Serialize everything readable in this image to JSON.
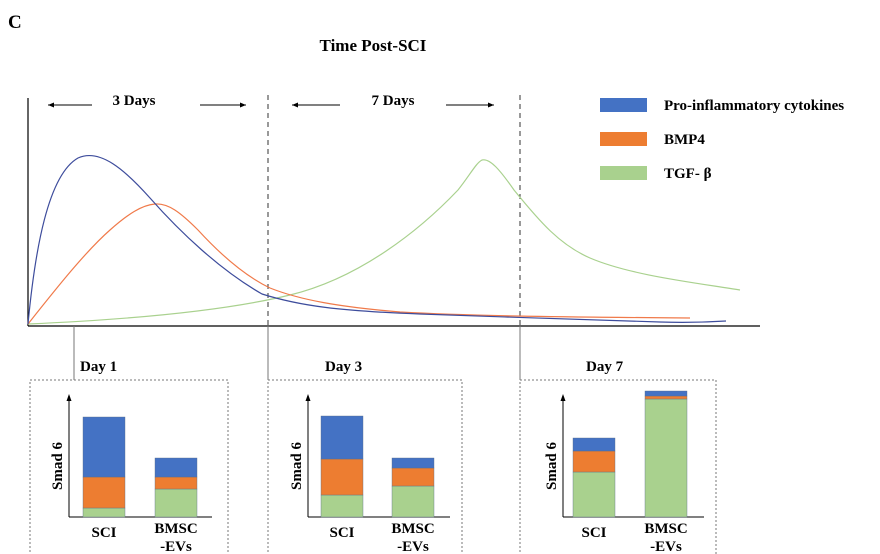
{
  "figure": {
    "panel_letter": "C",
    "title": "Time Post-SCI",
    "periods": [
      {
        "label": "3 Days"
      },
      {
        "label": "7 Days"
      }
    ],
    "legend": [
      {
        "label": "Pro-inflammatory cytokines",
        "color": "#4472C4"
      },
      {
        "label": "BMP4",
        "color": "#ED7D31"
      },
      {
        "label": "TGF- β",
        "color": "#A9D18E"
      }
    ],
    "curve_colors": {
      "pro_inflammatory": "#3D4C9C",
      "bmp4": "#F07A4A",
      "tgf_beta": "#A9D18E"
    }
  },
  "panels": [
    {
      "title": "Day 1",
      "ylabel": "Smad 6",
      "bars": [
        {
          "label": "SCI",
          "segments": [
            {
              "name": "TGF-β",
              "value": 0.09,
              "color": "#A9D18E"
            },
            {
              "name": "BMP4",
              "value": 0.31,
              "color": "#ED7D31"
            },
            {
              "name": "Pro-inflammatory cytokines",
              "value": 0.6,
              "color": "#4472C4"
            }
          ]
        },
        {
          "label_lines": [
            "BMSC",
            "-EVs"
          ],
          "segments": [
            {
              "name": "TGF-β",
              "value": 0.28,
              "color": "#A9D18E"
            },
            {
              "name": "BMP4",
              "value": 0.12,
              "color": "#ED7D31"
            },
            {
              "name": "Pro-inflammatory cytokines",
              "value": 0.19,
              "color": "#4472C4"
            }
          ]
        }
      ]
    },
    {
      "title": "Day 3",
      "ylabel": "Smad 6",
      "bars": [
        {
          "label": "SCI",
          "segments": [
            {
              "name": "TGF-β",
              "value": 0.22,
              "color": "#A9D18E"
            },
            {
              "name": "BMP4",
              "value": 0.36,
              "color": "#ED7D31"
            },
            {
              "name": "Pro-inflammatory cytokines",
              "value": 0.43,
              "color": "#4472C4"
            }
          ]
        },
        {
          "label_lines": [
            "BMSC",
            "-EVs"
          ],
          "segments": [
            {
              "name": "TGF-β",
              "value": 0.31,
              "color": "#A9D18E"
            },
            {
              "name": "BMP4",
              "value": 0.18,
              "color": "#ED7D31"
            },
            {
              "name": "Pro-inflammatory cytokines",
              "value": 0.1,
              "color": "#4472C4"
            }
          ]
        }
      ]
    },
    {
      "title": "Day 7",
      "ylabel": "Smad 6",
      "bars": [
        {
          "label": "SCI",
          "segments": [
            {
              "name": "TGF-β",
              "value": 0.45,
              "color": "#A9D18E"
            },
            {
              "name": "BMP4",
              "value": 0.21,
              "color": "#ED7D31"
            },
            {
              "name": "Pro-inflammatory cytokines",
              "value": 0.13,
              "color": "#4472C4"
            }
          ]
        },
        {
          "label_lines": [
            "BMSC",
            "-EVs"
          ],
          "segments": [
            {
              "name": "TGF-β",
              "value": 1.18,
              "color": "#A9D18E"
            },
            {
              "name": "BMP4",
              "value": 0.03,
              "color": "#ED7D31"
            },
            {
              "name": "Pro-inflammatory cytokines",
              "value": 0.05,
              "color": "#4472C4"
            }
          ]
        }
      ]
    }
  ]
}
